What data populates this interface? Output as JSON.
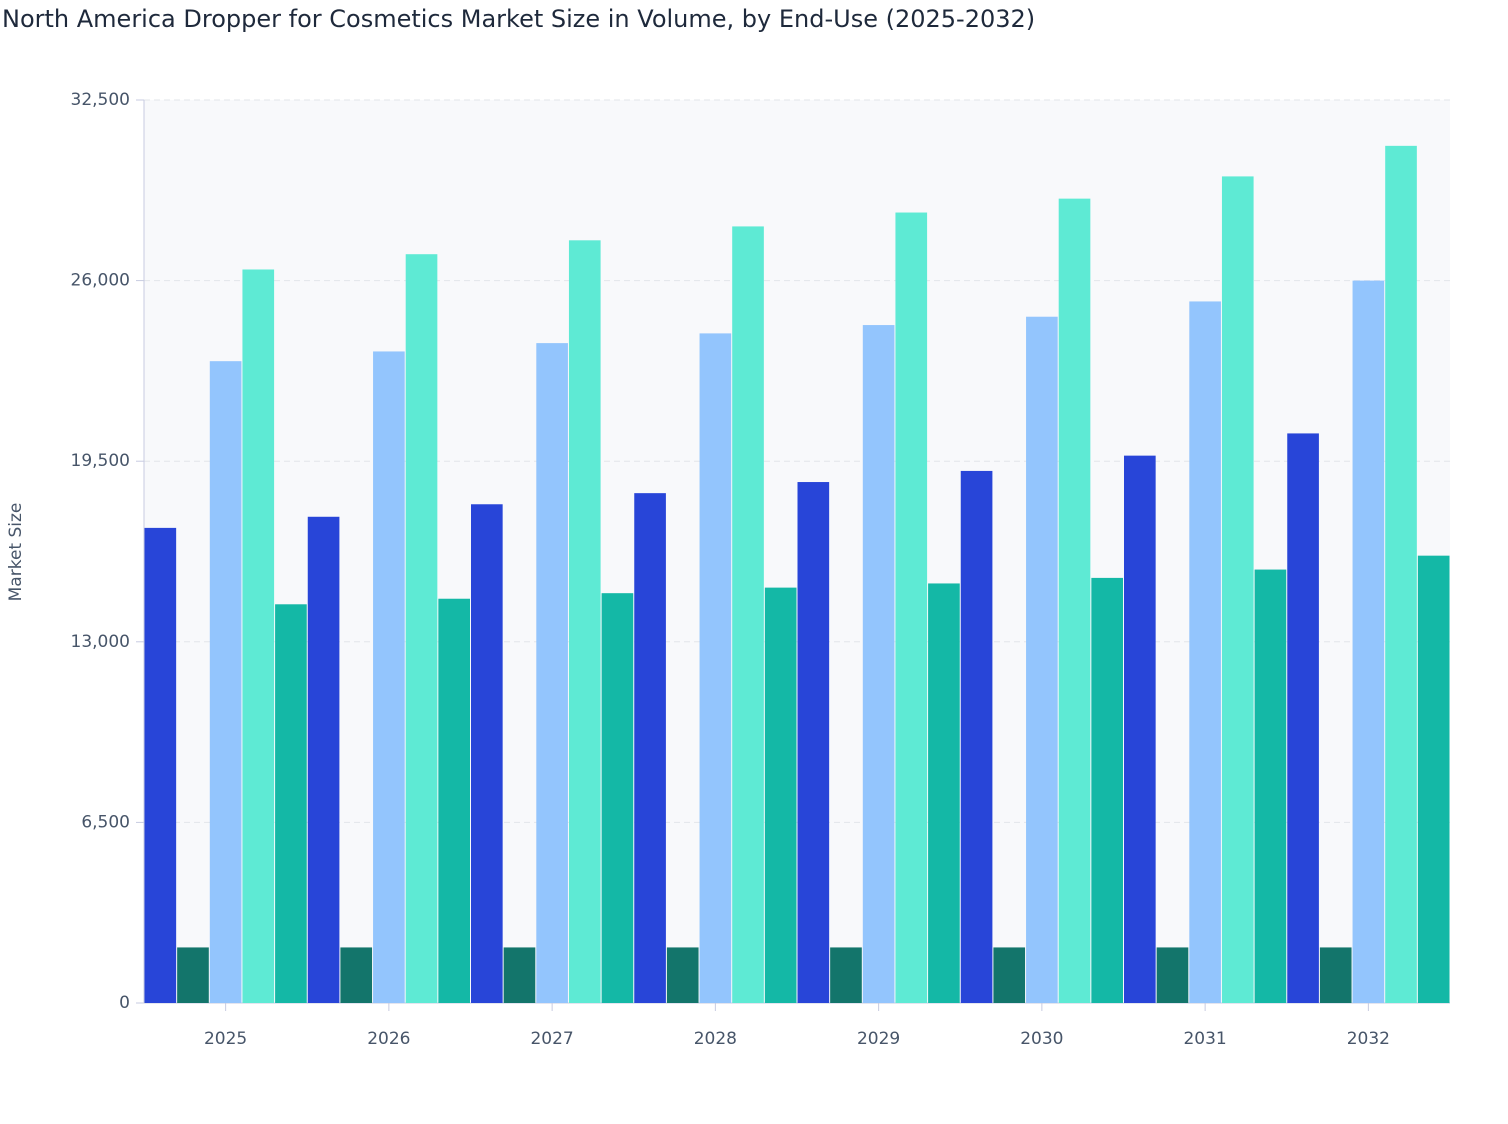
{
  "chart_data": {
    "type": "bar",
    "title": "North America Dropper for Cosmetics Market Size in Volume, by End-Use (2025-2032)",
    "y_label": "Market Size",
    "categories": [
      "2025",
      "2026",
      "2027",
      "2028",
      "2029",
      "2030",
      "2031",
      "2032"
    ],
    "series": [
      {
        "color": "#2845d8",
        "values": [
          17100,
          17500,
          17950,
          18350,
          18750,
          19150,
          19700,
          20500
        ]
      },
      {
        "color": "#13756b",
        "values": [
          2000,
          2000,
          2000,
          2000,
          2000,
          2000,
          2000,
          2000
        ]
      },
      {
        "color": "#93c5fd",
        "values": [
          23100,
          23450,
          23750,
          24100,
          24400,
          24700,
          25250,
          26000
        ]
      },
      {
        "color": "#5eead4",
        "values": [
          26400,
          26950,
          27450,
          27950,
          28450,
          28950,
          29750,
          30850
        ]
      },
      {
        "color": "#14b8a6",
        "values": [
          14350,
          14550,
          14750,
          14950,
          15100,
          15300,
          15600,
          16100
        ]
      }
    ],
    "ylim": [
      0,
      32500
    ],
    "yticks": [
      0,
      {
        "value": 6500,
        "label": "6,500"
      },
      {
        "value": 13000,
        "label": "13,000"
      },
      {
        "value": 19500,
        "label": "19,500"
      },
      {
        "value": 26000,
        "label": "26,000"
      },
      {
        "value": 32500,
        "label": "32,500"
      }
    ],
    "grid": true
  }
}
